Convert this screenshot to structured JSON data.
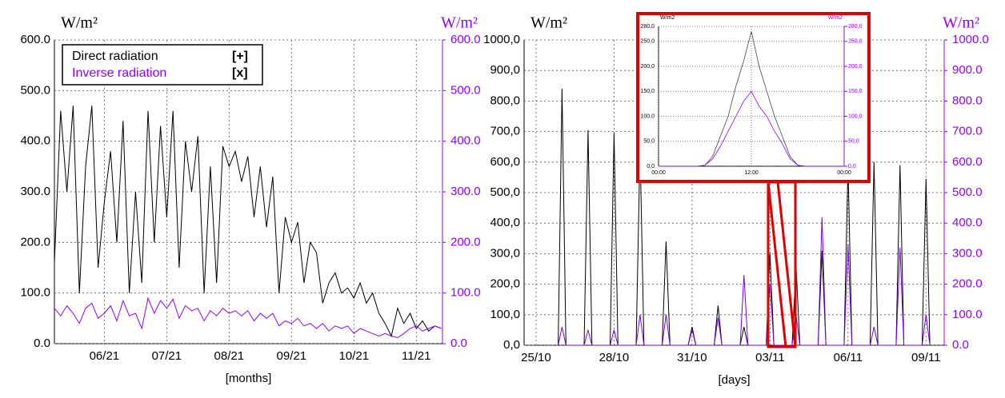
{
  "chart_data": [
    {
      "type": "line",
      "unit_label": "W/m²",
      "unit_label_right": "W/m²",
      "xlabel": "[months]",
      "x": [
        5.2,
        5.3,
        5.4,
        5.5,
        5.6,
        5.7,
        5.8,
        5.9,
        6.0,
        6.1,
        6.2,
        6.3,
        6.4,
        6.5,
        6.6,
        6.7,
        6.8,
        6.9,
        7.0,
        7.1,
        7.2,
        7.3,
        7.4,
        7.5,
        7.6,
        7.7,
        7.8,
        7.9,
        8.0,
        8.1,
        8.2,
        8.3,
        8.4,
        8.5,
        8.6,
        8.7,
        8.8,
        8.9,
        9.0,
        9.1,
        9.2,
        9.3,
        9.4,
        9.5,
        9.6,
        9.7,
        9.8,
        9.9,
        10.0,
        10.1,
        10.2,
        10.3,
        10.4,
        10.5,
        10.6,
        10.7,
        10.8,
        10.9,
        11.0,
        11.1,
        11.2,
        11.3,
        11.4
      ],
      "series": [
        {
          "name": "Direct radiation",
          "marker_label": "[+]",
          "color": "#000000",
          "values": [
            160,
            460,
            300,
            470,
            100,
            350,
            470,
            150,
            280,
            380,
            200,
            440,
            100,
            300,
            120,
            460,
            200,
            430,
            250,
            460,
            150,
            400,
            300,
            410,
            100,
            350,
            120,
            390,
            350,
            380,
            320,
            370,
            250,
            350,
            230,
            330,
            100,
            250,
            200,
            240,
            120,
            200,
            180,
            80,
            120,
            140,
            100,
            110,
            90,
            120,
            80,
            100,
            60,
            40,
            15,
            70,
            40,
            60,
            30,
            45,
            25,
            35,
            30
          ]
        },
        {
          "name": "Inverse radiation",
          "marker_label": "[x]",
          "color": "#9400ff",
          "axis": "y2",
          "values": [
            70,
            55,
            75,
            60,
            40,
            70,
            80,
            50,
            60,
            75,
            45,
            85,
            55,
            60,
            30,
            90,
            60,
            85,
            70,
            88,
            50,
            75,
            65,
            70,
            45,
            65,
            55,
            70,
            60,
            65,
            55,
            65,
            45,
            60,
            50,
            60,
            35,
            45,
            40,
            50,
            35,
            40,
            30,
            40,
            25,
            35,
            30,
            35,
            20,
            30,
            25,
            20,
            15,
            20,
            15,
            12,
            20,
            30,
            35,
            25,
            30,
            35,
            30
          ]
        }
      ],
      "xlim": [
        5.2,
        11.42
      ],
      "xticks": [
        {
          "value": 6,
          "label": "06/21"
        },
        {
          "value": 7,
          "label": "07/21"
        },
        {
          "value": 8,
          "label": "08/21"
        },
        {
          "value": 9,
          "label": "09/21"
        },
        {
          "value": 10,
          "label": "10/21"
        },
        {
          "value": 11,
          "label": "11/21"
        }
      ],
      "ylim": [
        0,
        600
      ],
      "yticks": [
        {
          "value": 0,
          "label": "0.0"
        },
        {
          "value": 100,
          "label": "100.0"
        },
        {
          "value": 200,
          "label": "200.0"
        },
        {
          "value": 300,
          "label": "300.0"
        },
        {
          "value": 400,
          "label": "400.0"
        },
        {
          "value": 500,
          "label": "500.0"
        },
        {
          "value": 600,
          "label": "600.0"
        }
      ],
      "y2lim": [
        0,
        600
      ],
      "y2ticks": [
        {
          "value": 0,
          "label": "0.0"
        },
        {
          "value": 100,
          "label": "100.0"
        },
        {
          "value": 200,
          "label": "200.0"
        },
        {
          "value": 300,
          "label": "300.0"
        },
        {
          "value": 400,
          "label": "400.0"
        },
        {
          "value": 500,
          "label": "500.0"
        },
        {
          "value": 600,
          "label": "600.0"
        }
      ],
      "grid": true,
      "legend": "upper-left"
    },
    {
      "type": "line",
      "unit_label": "W/m²",
      "unit_label_right": "W/m²",
      "xlabel": "[days]",
      "x": [
        0.85,
        1,
        1.15,
        1.85,
        2,
        2.15,
        2.85,
        3,
        3.15,
        3.85,
        4,
        4.15,
        4.85,
        5,
        5.15,
        5.85,
        6,
        6.15,
        6.85,
        7,
        7.15,
        7.85,
        8,
        8.15,
        8.85,
        9,
        9.15,
        9.85,
        10,
        10.15,
        10.85,
        11,
        11.15,
        11.85,
        12,
        12.15,
        12.85,
        13,
        13.15,
        13.85,
        14,
        14.15,
        14.85,
        15,
        15.15
      ],
      "series": [
        {
          "name": "Direct radiation",
          "color": "#000000",
          "values": [
            0,
            840,
            0,
            0,
            705,
            0,
            0,
            695,
            0,
            0,
            650,
            0,
            0,
            340,
            0,
            0,
            60,
            0,
            0,
            130,
            0,
            0,
            60,
            0,
            0,
            300,
            0,
            0,
            265,
            0,
            0,
            310,
            0,
            0,
            590,
            0,
            0,
            600,
            0,
            0,
            590,
            0,
            0,
            545,
            0
          ]
        },
        {
          "name": "Inverse radiation",
          "color": "#7a00e0",
          "axis": "y2",
          "values": [
            0,
            60,
            0,
            0,
            50,
            0,
            0,
            50,
            0,
            0,
            100,
            0,
            0,
            100,
            0,
            0,
            50,
            0,
            0,
            90,
            0,
            0,
            230,
            0,
            0,
            200,
            0,
            0,
            100,
            0,
            0,
            420,
            0,
            0,
            330,
            0,
            0,
            60,
            0,
            0,
            320,
            0,
            0,
            100,
            0
          ]
        }
      ],
      "xlim": [
        -0.46,
        15.7
      ],
      "xticks": [
        {
          "value": 0,
          "label": "25/10"
        },
        {
          "value": 3,
          "label": "28/10"
        },
        {
          "value": 6,
          "label": "31/10"
        },
        {
          "value": 9,
          "label": "03/11"
        },
        {
          "value": 12,
          "label": "06/11"
        },
        {
          "value": 15,
          "label": "09/11"
        }
      ],
      "ylim": [
        0,
        1000
      ],
      "yticks": [
        {
          "value": 0,
          "label": "0,0"
        },
        {
          "value": 100,
          "label": "100,0"
        },
        {
          "value": 200,
          "label": "200,0"
        },
        {
          "value": 300,
          "label": "300,0"
        },
        {
          "value": 400,
          "label": "400,0"
        },
        {
          "value": 500,
          "label": "500,0"
        },
        {
          "value": 600,
          "label": "600,0"
        },
        {
          "value": 700,
          "label": "700,0"
        },
        {
          "value": 800,
          "label": "800,0"
        },
        {
          "value": 900,
          "label": "900,0"
        },
        {
          "value": 1000,
          "label": "1000,0"
        }
      ],
      "y2lim": [
        0,
        1000
      ],
      "y2ticks": [
        {
          "value": 0,
          "label": "0.0"
        },
        {
          "value": 100,
          "label": "100.0"
        },
        {
          "value": 200,
          "label": "200.0"
        },
        {
          "value": 300,
          "label": "300.0"
        },
        {
          "value": 400,
          "label": "400.0"
        },
        {
          "value": 500,
          "label": "500.0"
        },
        {
          "value": 600,
          "label": "600.0"
        },
        {
          "value": 700,
          "label": "700.0"
        },
        {
          "value": 800,
          "label": "800.0"
        },
        {
          "value": 900,
          "label": "900.0"
        },
        {
          "value": 1000,
          "label": "1000.0"
        }
      ],
      "grid": true
    },
    {
      "type": "line",
      "unit_label": "W/m2",
      "unit_label_right": "W/m2",
      "x": [
        0,
        1,
        2,
        3,
        4,
        5,
        6,
        7,
        8,
        9,
        10,
        11,
        12,
        13,
        14,
        15,
        16,
        17,
        18,
        19,
        20,
        21,
        22,
        23,
        24
      ],
      "series": [
        {
          "name": "Direct radiation",
          "color": "#444444",
          "values": [
            0,
            0,
            0,
            0,
            0,
            0,
            2,
            20,
            60,
            100,
            160,
            210,
            270,
            200,
            150,
            100,
            60,
            20,
            2,
            0,
            0,
            0,
            0,
            0,
            0
          ]
        },
        {
          "name": "Inverse radiation",
          "color": "#9400ff",
          "axis": "y2",
          "values": [
            0,
            0,
            0,
            0,
            0,
            0,
            2,
            15,
            40,
            70,
            100,
            130,
            150,
            120,
            100,
            70,
            45,
            15,
            2,
            0,
            0,
            0,
            0,
            0,
            0
          ]
        }
      ],
      "xlim": [
        0,
        24
      ],
      "xticks": [
        {
          "value": 0,
          "label": "00:00"
        },
        {
          "value": 12,
          "label": "12:00"
        },
        {
          "value": 24,
          "label": "00:00"
        }
      ],
      "ylim": [
        0,
        280
      ],
      "yticks": [
        {
          "value": 0,
          "label": "0,0"
        },
        {
          "value": 50,
          "label": "50,0"
        },
        {
          "value": 100,
          "label": "100,0"
        },
        {
          "value": 150,
          "label": "150,0"
        },
        {
          "value": 200,
          "label": "200,0"
        },
        {
          "value": 250,
          "label": "250,0"
        },
        {
          "value": 280,
          "label": "280,0"
        }
      ],
      "y2lim": [
        0,
        280
      ],
      "y2ticks": [
        {
          "value": 0,
          "label": "0,0"
        },
        {
          "value": 50,
          "label": "50,0"
        },
        {
          "value": 100,
          "label": "100,0"
        },
        {
          "value": 150,
          "label": "150,0"
        },
        {
          "value": 200,
          "label": "200,0"
        },
        {
          "value": 250,
          "label": "250,0"
        },
        {
          "value": 280,
          "label": "280,0"
        }
      ],
      "grid": true
    }
  ]
}
